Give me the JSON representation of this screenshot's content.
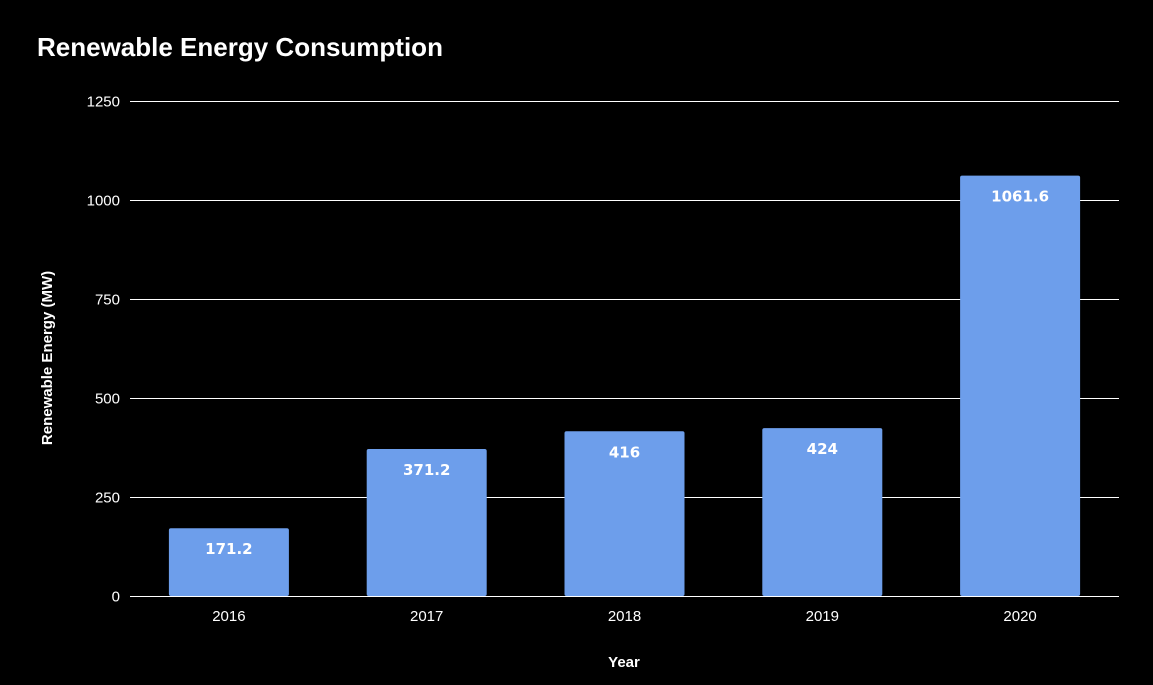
{
  "chart_data": {
    "type": "bar",
    "title": "Renewable Energy Consumption",
    "xlabel": "Year",
    "ylabel": "Renewable Energy (MW)",
    "categories": [
      "2016",
      "2017",
      "2018",
      "2019",
      "2020"
    ],
    "values": [
      171.2,
      371.2,
      416,
      424,
      1061.6
    ],
    "data_labels": [
      "171.2",
      "371.2",
      "416",
      "424",
      "1061.6"
    ],
    "yticks": [
      0,
      250,
      500,
      750,
      1000,
      1250
    ],
    "ylim": [
      0,
      1250
    ],
    "grid": true,
    "legend": "none"
  },
  "colors": {
    "background": "#000000",
    "bar": "#6d9eeb",
    "grid": "#ffffff",
    "text": "#ffffff"
  }
}
